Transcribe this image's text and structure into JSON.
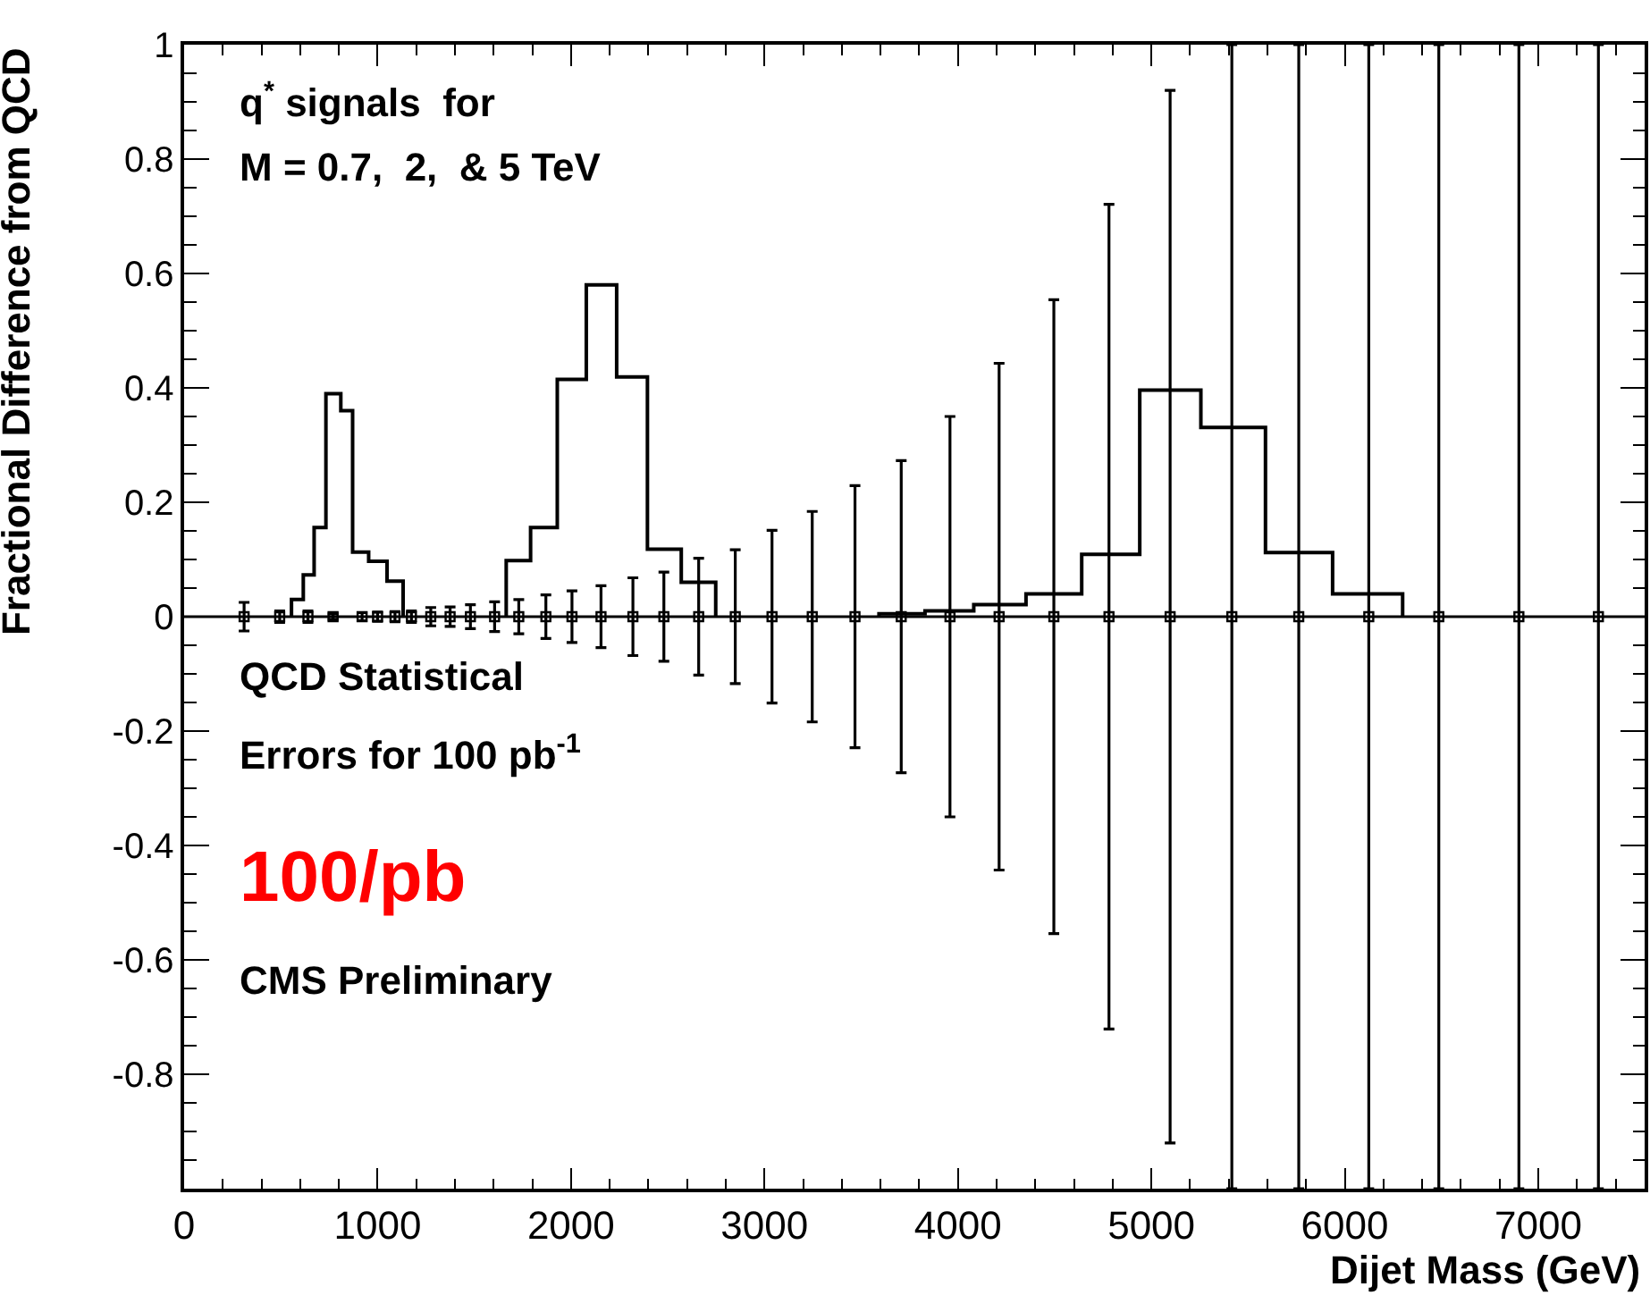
{
  "chart_data": {
    "type": "step",
    "xlabel": "Dijet Mass (GeV)",
    "ylabel": "Fractional Difference from QCD",
    "xlim": [
      0,
      7550
    ],
    "xticks": [
      0,
      1000,
      2000,
      3000,
      4000,
      5000,
      6000,
      7000
    ],
    "ylim": [
      -1,
      1
    ],
    "yticks": [
      -0.8,
      -0.6,
      -0.4,
      -0.2,
      0,
      0.2,
      0.4,
      0.6,
      0.8,
      1
    ],
    "series": [
      {
        "color": "#000000",
        "x": [
          555,
          555,
          616,
          672,
          733,
          810,
          871,
          954,
          1049,
          1132
        ],
        "values": [
          0,
          0.03,
          0.073,
          0.156,
          0.39,
          0.36,
          0.113,
          0.097,
          0.062,
          0
        ]
      },
      {
        "color": "#000000",
        "x": [
          1665,
          1665,
          1791,
          1929,
          2079,
          2236,
          2395,
          2570,
          2748
        ],
        "values": [
          0,
          0.098,
          0.156,
          0.415,
          0.58,
          0.419,
          0.118,
          0.06,
          0
        ]
      },
      {
        "color": "#000000",
        "x": [
          3592,
          3592,
          3830,
          4082,
          4352,
          4640,
          4940,
          5256,
          5590,
          5937,
          6299
        ],
        "values": [
          0,
          0.005,
          0.01,
          0.021,
          0.04,
          0.109,
          0.396,
          0.331,
          0.112,
          0.04,
          0
        ]
      },
      {
        "type": "scatter",
        "marker": "square",
        "color": "#000000",
        "x": [
          310,
          494,
          640,
          770,
          920,
          1000,
          1090,
          1175,
          1275,
          1375,
          1480,
          1605,
          1730,
          1870,
          2005,
          2155,
          2320,
          2480,
          2660,
          2849,
          3039,
          3247,
          3468,
          3707,
          3959,
          4213,
          4496,
          4781,
          5097,
          5416,
          5762,
          6124,
          6486,
          6900,
          7311
        ],
        "values": [
          0,
          0,
          0,
          0,
          0,
          0,
          0,
          0,
          0,
          0,
          0,
          0,
          0,
          0,
          0,
          0,
          0,
          0,
          0,
          0,
          0,
          0,
          0,
          0,
          0,
          0,
          0,
          0,
          0,
          0,
          0,
          0,
          0,
          0,
          0
        ],
        "errors": [
          0.025,
          0.01,
          0.01,
          0.005,
          0.007,
          0.008,
          0.009,
          0.01,
          0.016,
          0.017,
          0.021,
          0.026,
          0.03,
          0.038,
          0.045,
          0.054,
          0.068,
          0.078,
          0.102,
          0.117,
          0.151,
          0.184,
          0.229,
          0.273,
          0.35,
          0.443,
          0.554,
          0.721,
          0.92,
          1,
          1,
          1,
          1,
          1,
          1
        ]
      }
    ],
    "ref_lines": [
      {
        "axis": "y",
        "value": 0,
        "color": "#000000"
      }
    ],
    "annotations": [
      "q$^{*}$ signals  for",
      "M = 0.7,  2,  & 5 TeV",
      "QCD Statistical",
      "Errors for 100 pb$^{-1}$",
      "100/pb",
      "CMS Preliminary"
    ]
  }
}
